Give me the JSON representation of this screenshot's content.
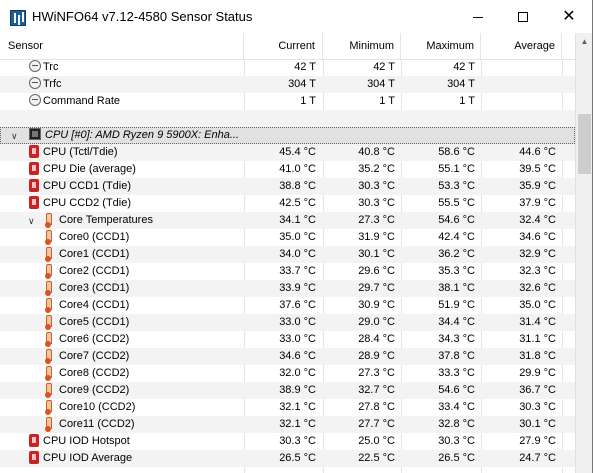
{
  "window": {
    "title": "HWiNFO64 v7.12-4580 Sensor Status",
    "min_glyph": "",
    "max_glyph": "",
    "close_glyph": "✕"
  },
  "columns": {
    "sensor": "Sensor",
    "current": "Current",
    "minimum": "Minimum",
    "maximum": "Maximum",
    "average": "Average"
  },
  "rows": [
    {
      "label": "Trc",
      "icon": "clock-icon",
      "current": "42 T",
      "minimum": "42 T",
      "maximum": "42 T",
      "average": ""
    },
    {
      "label": "Trfc",
      "icon": "clock-icon",
      "current": "304 T",
      "minimum": "304 T",
      "maximum": "304 T",
      "average": ""
    },
    {
      "label": "Command Rate",
      "icon": "clock-icon",
      "current": "1 T",
      "minimum": "1 T",
      "maximum": "1 T",
      "average": ""
    },
    {
      "label": "",
      "icon": "",
      "current": "",
      "minimum": "",
      "maximum": "",
      "average": ""
    },
    {
      "label": "CPU [#0]: AMD Ryzen 9 5900X: Enha...",
      "icon": "cpu-icon",
      "current": "",
      "minimum": "",
      "maximum": "",
      "average": ""
    },
    {
      "label": "CPU (Tctl/Tdie)",
      "icon": "cpu-chip-icon",
      "current": "45.4 °C",
      "minimum": "40.8 °C",
      "maximum": "58.6 °C",
      "average": "44.6 °C"
    },
    {
      "label": "CPU Die (average)",
      "icon": "cpu-chip-icon",
      "current": "41.0 °C",
      "minimum": "35.2 °C",
      "maximum": "55.1 °C",
      "average": "39.5 °C"
    },
    {
      "label": "CPU CCD1 (Tdie)",
      "icon": "cpu-chip-icon",
      "current": "38.8 °C",
      "minimum": "30.3 °C",
      "maximum": "53.3 °C",
      "average": "35.9 °C"
    },
    {
      "label": "CPU CCD2 (Tdie)",
      "icon": "cpu-chip-icon",
      "current": "42.5 °C",
      "minimum": "30.3 °C",
      "maximum": "55.5 °C",
      "average": "37.9 °C"
    },
    {
      "label": "Core Temperatures",
      "icon": "thermometer-icon",
      "current": "34.1 °C",
      "minimum": "27.3 °C",
      "maximum": "54.6 °C",
      "average": "32.4 °C"
    },
    {
      "label": "Core0 (CCD1)",
      "icon": "thermometer-icon",
      "current": "35.0 °C",
      "minimum": "31.9 °C",
      "maximum": "42.4 °C",
      "average": "34.6 °C"
    },
    {
      "label": "Core1 (CCD1)",
      "icon": "thermometer-icon",
      "current": "34.0 °C",
      "minimum": "30.1 °C",
      "maximum": "36.2 °C",
      "average": "32.9 °C"
    },
    {
      "label": "Core2 (CCD1)",
      "icon": "thermometer-icon",
      "current": "33.7 °C",
      "minimum": "29.6 °C",
      "maximum": "35.3 °C",
      "average": "32.3 °C"
    },
    {
      "label": "Core3 (CCD1)",
      "icon": "thermometer-icon",
      "current": "33.9 °C",
      "minimum": "29.7 °C",
      "maximum": "38.1 °C",
      "average": "32.6 °C"
    },
    {
      "label": "Core4 (CCD1)",
      "icon": "thermometer-icon",
      "current": "37.6 °C",
      "minimum": "30.9 °C",
      "maximum": "51.9 °C",
      "average": "35.0 °C"
    },
    {
      "label": "Core5 (CCD1)",
      "icon": "thermometer-icon",
      "current": "33.0 °C",
      "minimum": "29.0 °C",
      "maximum": "34.4 °C",
      "average": "31.4 °C"
    },
    {
      "label": "Core6 (CCD2)",
      "icon": "thermometer-icon",
      "current": "33.0 °C",
      "minimum": "28.4 °C",
      "maximum": "34.3 °C",
      "average": "31.1 °C"
    },
    {
      "label": "Core7 (CCD2)",
      "icon": "thermometer-icon",
      "current": "34.6 °C",
      "minimum": "28.9 °C",
      "maximum": "37.8 °C",
      "average": "31.8 °C"
    },
    {
      "label": "Core8 (CCD2)",
      "icon": "thermometer-icon",
      "current": "32.0 °C",
      "minimum": "27.3 °C",
      "maximum": "33.3 °C",
      "average": "29.9 °C"
    },
    {
      "label": "Core9 (CCD2)",
      "icon": "thermometer-icon",
      "current": "38.9 °C",
      "minimum": "32.7 °C",
      "maximum": "54.6 °C",
      "average": "36.7 °C"
    },
    {
      "label": "Core10 (CCD2)",
      "icon": "thermometer-icon",
      "current": "32.1 °C",
      "minimum": "27.8 °C",
      "maximum": "33.4 °C",
      "average": "30.3 °C"
    },
    {
      "label": "Core11 (CCD2)",
      "icon": "thermometer-icon",
      "current": "32.1 °C",
      "minimum": "27.7 °C",
      "maximum": "32.8 °C",
      "average": "30.1 °C"
    },
    {
      "label": "CPU IOD Hotspot",
      "icon": "cpu-chip-icon",
      "current": "30.3 °C",
      "minimum": "25.0 °C",
      "maximum": "30.3 °C",
      "average": "27.9 °C"
    },
    {
      "label": "CPU IOD Average",
      "icon": "cpu-chip-icon",
      "current": "26.5 °C",
      "minimum": "22.5 °C",
      "maximum": "26.5 °C",
      "average": "24.7 °C"
    }
  ],
  "colors": {
    "group_row": "#e1e1e1",
    "alt_row": "#f3f3f3",
    "chip_red": "#cc2222"
  }
}
